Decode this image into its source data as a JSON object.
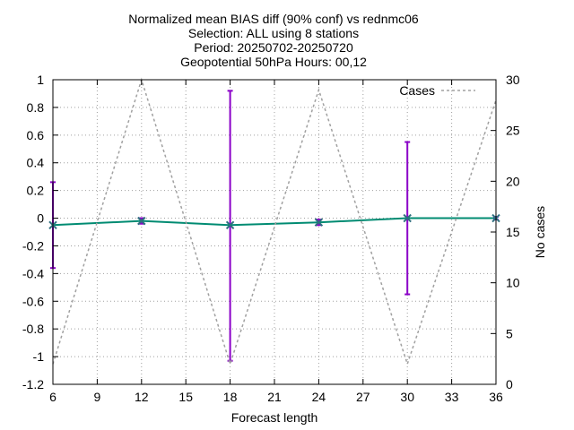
{
  "chart_data": {
    "type": "line",
    "title_lines": [
      "Normalized mean BIAS diff (90% conf) vs rednmc06",
      "Selection: ALL using     8 stations",
      "Period: 20250702-20250720",
      "Geopotential 50hPa   Hours: 00,12"
    ],
    "xlabel": "Forecast length",
    "ylabel": "",
    "y2label": "No cases",
    "xlim": [
      6,
      36
    ],
    "ylim": [
      -1.2,
      1.0
    ],
    "y2lim": [
      0,
      30
    ],
    "x_ticks": [
      6,
      9,
      12,
      15,
      18,
      21,
      24,
      27,
      30,
      33,
      36
    ],
    "y_ticks": [
      -1.2,
      -1.0,
      -0.8,
      -0.6,
      -0.4,
      -0.2,
      0,
      0.2,
      0.4,
      0.6,
      0.8,
      1.0
    ],
    "y_tick_labels": [
      "-1.2",
      "-1",
      "-0.8",
      "-0.6",
      "-0.4",
      "-0.2",
      "0",
      "0.2",
      "0.4",
      "0.6",
      "0.8",
      "1"
    ],
    "y2_ticks": [
      0,
      5,
      10,
      15,
      20,
      25,
      30
    ],
    "y2_tick_labels": [
      "0",
      "5",
      "10",
      "15",
      "20",
      "25",
      "30"
    ],
    "grid": true,
    "legend_position": "top-right",
    "series": [
      {
        "name": "",
        "axis": "left",
        "style": "line-with-errorbars",
        "color": "#008b72",
        "marker_color": "#2f6f7f",
        "errorbar_color": "#8a00c8",
        "x": [
          6,
          12,
          18,
          24,
          30,
          36
        ],
        "y": [
          -0.05,
          -0.02,
          -0.05,
          -0.03,
          0.0,
          0.0
        ],
        "err_low": [
          -0.36,
          -0.04,
          -1.03,
          -0.05,
          -0.55,
          -0.01
        ],
        "err_high": [
          0.26,
          0.0,
          0.92,
          -0.01,
          0.55,
          0.01
        ]
      },
      {
        "name": "Cases",
        "axis": "right",
        "style": "dashed-line",
        "color": "#a0a0a0",
        "x": [
          6,
          12,
          18,
          24,
          30,
          36
        ],
        "y": [
          2,
          30,
          2,
          29,
          2,
          28
        ]
      }
    ]
  }
}
